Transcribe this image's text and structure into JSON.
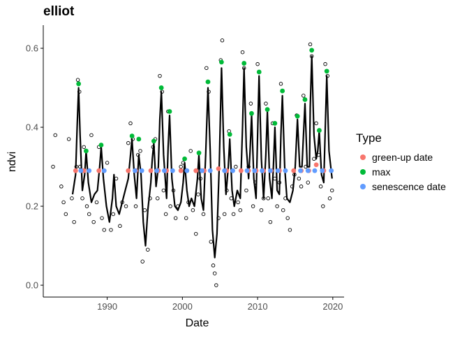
{
  "chart_data": {
    "type": "scatter",
    "title": "elliot",
    "xlabel": "Date",
    "ylabel": "ndvi",
    "xlim": [
      1981.5,
      2021.5
    ],
    "ylim": [
      -0.03,
      0.655
    ],
    "xticks": [
      1990,
      2000,
      2010,
      2020
    ],
    "yticks": [
      0.0,
      0.2,
      0.4,
      0.6
    ],
    "xtick_labels": [
      "1990",
      "2000",
      "2010",
      "2020"
    ],
    "ytick_labels": [
      "0.0",
      "0.2",
      "0.4",
      "0.6"
    ],
    "grid": false,
    "legend": {
      "title": "Type",
      "position": "right",
      "entries": [
        "green-up date",
        "max",
        "senescence date"
      ]
    },
    "colors": {
      "green-up date": "#F8766D",
      "max": "#00BA38",
      "senescence date": "#619CFF",
      "observations": "#000000",
      "smoothed": "#000000"
    },
    "series": [
      {
        "name": "max",
        "x": [
          1986.2,
          1987.2,
          1989.2,
          1993.3,
          1994.2,
          1996.2,
          1997.2,
          1998.3,
          2000.3,
          2002.2,
          2003.4,
          2005.2,
          2006.3,
          2008.2,
          2009.2,
          2010.2,
          2011.3,
          2012.3,
          2013.3,
          2015.3,
          2016.3,
          2017.2,
          2018.2,
          2019.2
        ],
        "y": [
          0.51,
          0.34,
          0.355,
          0.378,
          0.37,
          0.365,
          0.5,
          0.44,
          0.32,
          0.335,
          0.515,
          0.565,
          0.382,
          0.562,
          0.435,
          0.54,
          0.445,
          0.41,
          0.492,
          0.428,
          0.47,
          0.595,
          0.392,
          0.542
        ]
      },
      {
        "name": "green-up date",
        "x": [
          1985.8,
          1986.9,
          1988.9,
          1992.8,
          1993.8,
          1995.8,
          1996.8,
          1997.9,
          1999.8,
          2001.8,
          2002.9,
          2004.8,
          2005.9,
          2007.8,
          2008.8,
          2009.8,
          2010.8,
          2011.8,
          2012.9,
          2014.8,
          2015.8,
          2016.8,
          2017.8,
          2018.8
        ],
        "y": [
          0.29,
          0.29,
          0.29,
          0.29,
          0.29,
          0.29,
          0.29,
          0.29,
          0.29,
          0.29,
          0.29,
          0.295,
          0.29,
          0.29,
          0.29,
          0.29,
          0.29,
          0.29,
          0.29,
          0.29,
          0.29,
          0.29,
          0.305,
          0.29
        ]
      },
      {
        "name": "senescence date",
        "x": [
          1986.5,
          1987.6,
          1989.6,
          1993.7,
          1994.6,
          1996.6,
          1997.6,
          1998.7,
          2000.6,
          2002.6,
          2003.7,
          2005.6,
          2006.7,
          2008.6,
          2009.6,
          2010.6,
          2011.7,
          2012.7,
          2013.7,
          2015.7,
          2016.7,
          2017.6,
          2018.6,
          2019.8
        ],
        "y": [
          0.29,
          0.29,
          0.29,
          0.29,
          0.29,
          0.29,
          0.29,
          0.29,
          0.29,
          0.29,
          0.29,
          0.29,
          0.29,
          0.29,
          0.29,
          0.29,
          0.29,
          0.29,
          0.29,
          0.29,
          0.29,
          0.29,
          0.29,
          0.29
        ]
      },
      {
        "x": [
          1982.8,
          1983.1,
          1983.9,
          1984.2,
          1984.5,
          1984.9,
          1985.3,
          1985.6,
          1985.9,
          1986.1,
          1986.3,
          1986.4,
          1986.7,
          1986.9,
          1987.3,
          1987.6,
          1987.9,
          1988.2,
          1988.6,
          1988.9,
          1989.3,
          1989.6,
          1990.0,
          1990.5,
          1990.8,
          1991.2,
          1991.7,
          1992.0,
          1992.5,
          1992.8,
          1993.1,
          1993.4,
          1993.8,
          1994.1,
          1994.4,
          1994.7,
          1995.0,
          1995.4,
          1995.7,
          1996.1,
          1996.4,
          1996.7,
          1997.0,
          1997.3,
          1997.5,
          1997.8,
          1998.1,
          1998.4,
          1998.8,
          1999.1,
          1999.4,
          1999.8,
          2000.1,
          2000.5,
          2000.8,
          2001.1,
          2001.4,
          2001.8,
          2002.1,
          2002.4,
          2002.8,
          2003.2,
          2003.5,
          2003.8,
          2004.1,
          2004.3,
          2004.5,
          2004.8,
          2005.1,
          2005.3,
          2005.6,
          2005.9,
          2006.2,
          2006.5,
          2006.8,
          2007.1,
          2007.4,
          2007.7,
          2008.0,
          2008.2,
          2008.5,
          2008.8,
          2009.1,
          2009.4,
          2009.7,
          2010.0,
          2010.2,
          2010.5,
          2010.8,
          2011.1,
          2011.4,
          2011.7,
          2012.0,
          2012.3,
          2012.6,
          2012.9,
          2013.1,
          2013.4,
          2013.7,
          2014.0,
          2014.3,
          2014.6,
          2014.9,
          2015.2,
          2015.5,
          2015.8,
          2016.1,
          2016.4,
          2016.7,
          2017.0,
          2017.2,
          2017.5,
          2017.8,
          2018.1,
          2018.4,
          2018.7,
          2019.0,
          2019.3,
          2019.6,
          2019.9
        ],
        "y": [
          0.3,
          0.38,
          0.25,
          0.21,
          0.18,
          0.37,
          0.22,
          0.16,
          0.3,
          0.52,
          0.49,
          0.3,
          0.22,
          0.35,
          0.2,
          0.18,
          0.38,
          0.16,
          0.21,
          0.35,
          0.17,
          0.14,
          0.31,
          0.14,
          0.18,
          0.27,
          0.15,
          0.21,
          0.2,
          0.36,
          0.41,
          0.37,
          0.2,
          0.33,
          0.34,
          0.06,
          0.19,
          0.09,
          0.22,
          0.35,
          0.37,
          0.22,
          0.53,
          0.49,
          0.24,
          0.18,
          0.44,
          0.2,
          0.24,
          0.17,
          0.2,
          0.3,
          0.31,
          0.17,
          0.21,
          0.34,
          0.19,
          0.13,
          0.23,
          0.27,
          0.18,
          0.55,
          0.49,
          0.11,
          0.05,
          0.03,
          0.0,
          0.17,
          0.57,
          0.62,
          0.18,
          0.24,
          0.39,
          0.22,
          0.18,
          0.3,
          0.21,
          0.19,
          0.59,
          0.55,
          0.24,
          0.3,
          0.46,
          0.2,
          0.26,
          0.56,
          0.54,
          0.19,
          0.22,
          0.46,
          0.22,
          0.16,
          0.41,
          0.27,
          0.2,
          0.26,
          0.51,
          0.19,
          0.22,
          0.17,
          0.14,
          0.25,
          0.28,
          0.43,
          0.27,
          0.25,
          0.48,
          0.3,
          0.26,
          0.61,
          0.58,
          0.32,
          0.41,
          0.33,
          0.25,
          0.2,
          0.56,
          0.53,
          0.22,
          0.24
        ]
      },
      {
        "x": [
          1985.4,
          1985.8,
          1986.0,
          1986.2,
          1986.4,
          1986.7,
          1987.0,
          1987.2,
          1987.5,
          1987.9,
          1988.3,
          1988.7,
          1989.0,
          1989.2,
          1989.5,
          1989.9,
          1990.3,
          1990.7,
          1990.9,
          1991.2,
          1991.6,
          1992.0,
          1992.4,
          1992.8,
          1993.1,
          1993.3,
          1993.6,
          1993.9,
          1994.2,
          1994.5,
          1994.8,
          1995.1,
          1995.4,
          1995.8,
          1996.0,
          1996.2,
          1996.5,
          1996.8,
          1997.0,
          1997.2,
          1997.5,
          1997.9,
          1998.1,
          1998.3,
          1998.6,
          1999.0,
          1999.4,
          1999.8,
          2000.1,
          2000.3,
          2000.6,
          2000.9,
          2001.2,
          2001.6,
          2002.0,
          2002.2,
          2002.5,
          2002.8,
          2003.1,
          2003.4,
          2003.7,
          2004.0,
          2004.3,
          2004.6,
          2004.9,
          2005.2,
          2005.5,
          2005.8,
          2006.1,
          2006.3,
          2006.6,
          2006.9,
          2007.3,
          2007.7,
          2008.0,
          2008.2,
          2008.5,
          2008.8,
          2009.0,
          2009.2,
          2009.5,
          2009.8,
          2010.0,
          2010.2,
          2010.5,
          2010.8,
          2011.1,
          2011.3,
          2011.6,
          2011.9,
          2012.1,
          2012.3,
          2012.6,
          2012.9,
          2013.1,
          2013.3,
          2013.6,
          2013.9,
          2014.3,
          2014.7,
          2015.0,
          2015.3,
          2015.6,
          2015.9,
          2016.1,
          2016.3,
          2016.6,
          2016.9,
          2017.0,
          2017.2,
          2017.5,
          2017.8,
          2018.0,
          2018.2,
          2018.5,
          2018.8,
          2019.0,
          2019.2,
          2019.5,
          2019.9
        ],
        "y": [
          0.23,
          0.28,
          0.4,
          0.5,
          0.38,
          0.24,
          0.28,
          0.34,
          0.26,
          0.21,
          0.23,
          0.24,
          0.3,
          0.35,
          0.27,
          0.2,
          0.16,
          0.22,
          0.28,
          0.2,
          0.18,
          0.21,
          0.24,
          0.27,
          0.33,
          0.37,
          0.28,
          0.22,
          0.33,
          0.28,
          0.16,
          0.1,
          0.19,
          0.26,
          0.32,
          0.36,
          0.25,
          0.3,
          0.42,
          0.49,
          0.33,
          0.22,
          0.35,
          0.43,
          0.27,
          0.2,
          0.19,
          0.21,
          0.26,
          0.31,
          0.24,
          0.2,
          0.22,
          0.2,
          0.27,
          0.33,
          0.22,
          0.19,
          0.33,
          0.5,
          0.34,
          0.14,
          0.07,
          0.13,
          0.3,
          0.55,
          0.35,
          0.23,
          0.3,
          0.37,
          0.24,
          0.2,
          0.24,
          0.22,
          0.4,
          0.55,
          0.35,
          0.27,
          0.34,
          0.43,
          0.27,
          0.22,
          0.38,
          0.53,
          0.32,
          0.22,
          0.33,
          0.44,
          0.27,
          0.22,
          0.3,
          0.4,
          0.24,
          0.23,
          0.38,
          0.48,
          0.3,
          0.22,
          0.21,
          0.24,
          0.3,
          0.42,
          0.3,
          0.3,
          0.38,
          0.46,
          0.3,
          0.3,
          0.45,
          0.58,
          0.38,
          0.32,
          0.34,
          0.39,
          0.28,
          0.26,
          0.4,
          0.53,
          0.34,
          0.27
        ]
      }
    ]
  }
}
